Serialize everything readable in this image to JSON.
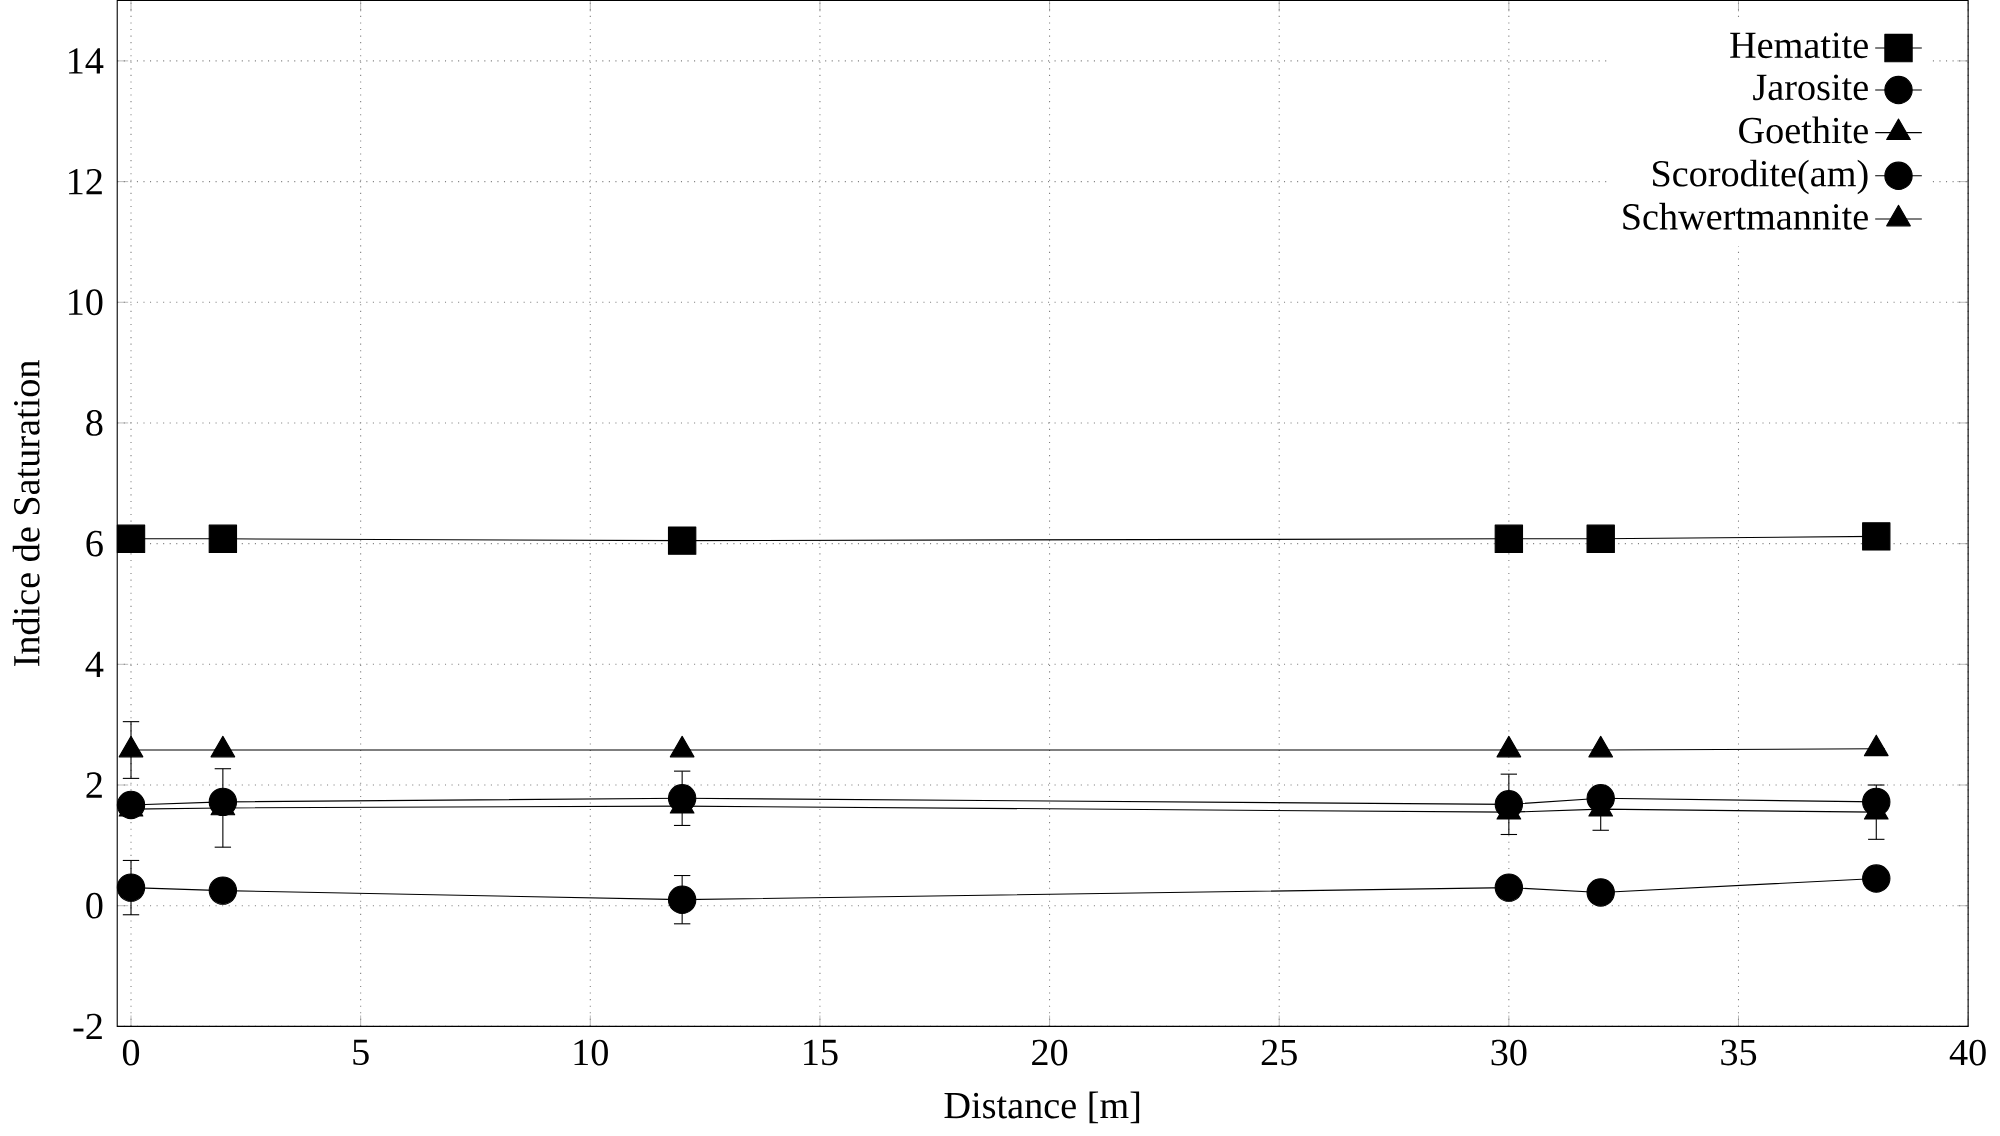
{
  "chart_data": {
    "type": "line",
    "xlabel": "Distance [m]",
    "ylabel": "Indice de Saturation",
    "x": [
      0,
      2,
      12,
      30,
      32,
      38
    ],
    "series": [
      {
        "name": "Hematite",
        "color": "#000000",
        "marker": "square",
        "values": [
          6.08,
          6.08,
          6.05,
          6.08,
          6.08,
          6.12
        ]
      },
      {
        "name": "Jarosite",
        "color": "#000000",
        "marker": "circle",
        "values": [
          1.67,
          1.72,
          1.78,
          1.68,
          1.78,
          1.72
        ],
        "errors": [
          null,
          null,
          0.45,
          0.5,
          null,
          null
        ]
      },
      {
        "name": "Goethite",
        "color": "#000000",
        "marker": "triangle",
        "values": [
          2.58,
          2.58,
          2.58,
          2.58,
          2.58,
          2.6
        ],
        "errors": [
          0.47,
          null,
          null,
          null,
          null,
          null
        ]
      },
      {
        "name": "Scorodite(am)",
        "color": "#000000",
        "marker": "circle",
        "values": [
          0.3,
          0.25,
          0.1,
          0.3,
          0.22,
          0.45
        ],
        "errors": [
          0.45,
          0.15,
          0.4,
          0.15,
          0.15,
          null
        ]
      },
      {
        "name": "Schwertmannite",
        "color": "#000000",
        "marker": "triangle",
        "values": [
          1.6,
          1.62,
          1.65,
          1.55,
          1.6,
          1.55
        ],
        "errors": [
          null,
          0.65,
          null,
          null,
          0.35,
          0.45
        ]
      }
    ],
    "xlim": [
      -0.3,
      40
    ],
    "ylim": [
      -2,
      15
    ],
    "xticks": [
      0,
      5,
      10,
      15,
      20,
      25,
      30,
      35,
      40
    ],
    "yticks": [
      {
        "value": -2,
        "label": "-2"
      },
      0,
      2,
      4,
      6,
      8,
      10,
      12,
      14
    ],
    "grid": true,
    "legend": "top right",
    "line_style": "solid"
  }
}
